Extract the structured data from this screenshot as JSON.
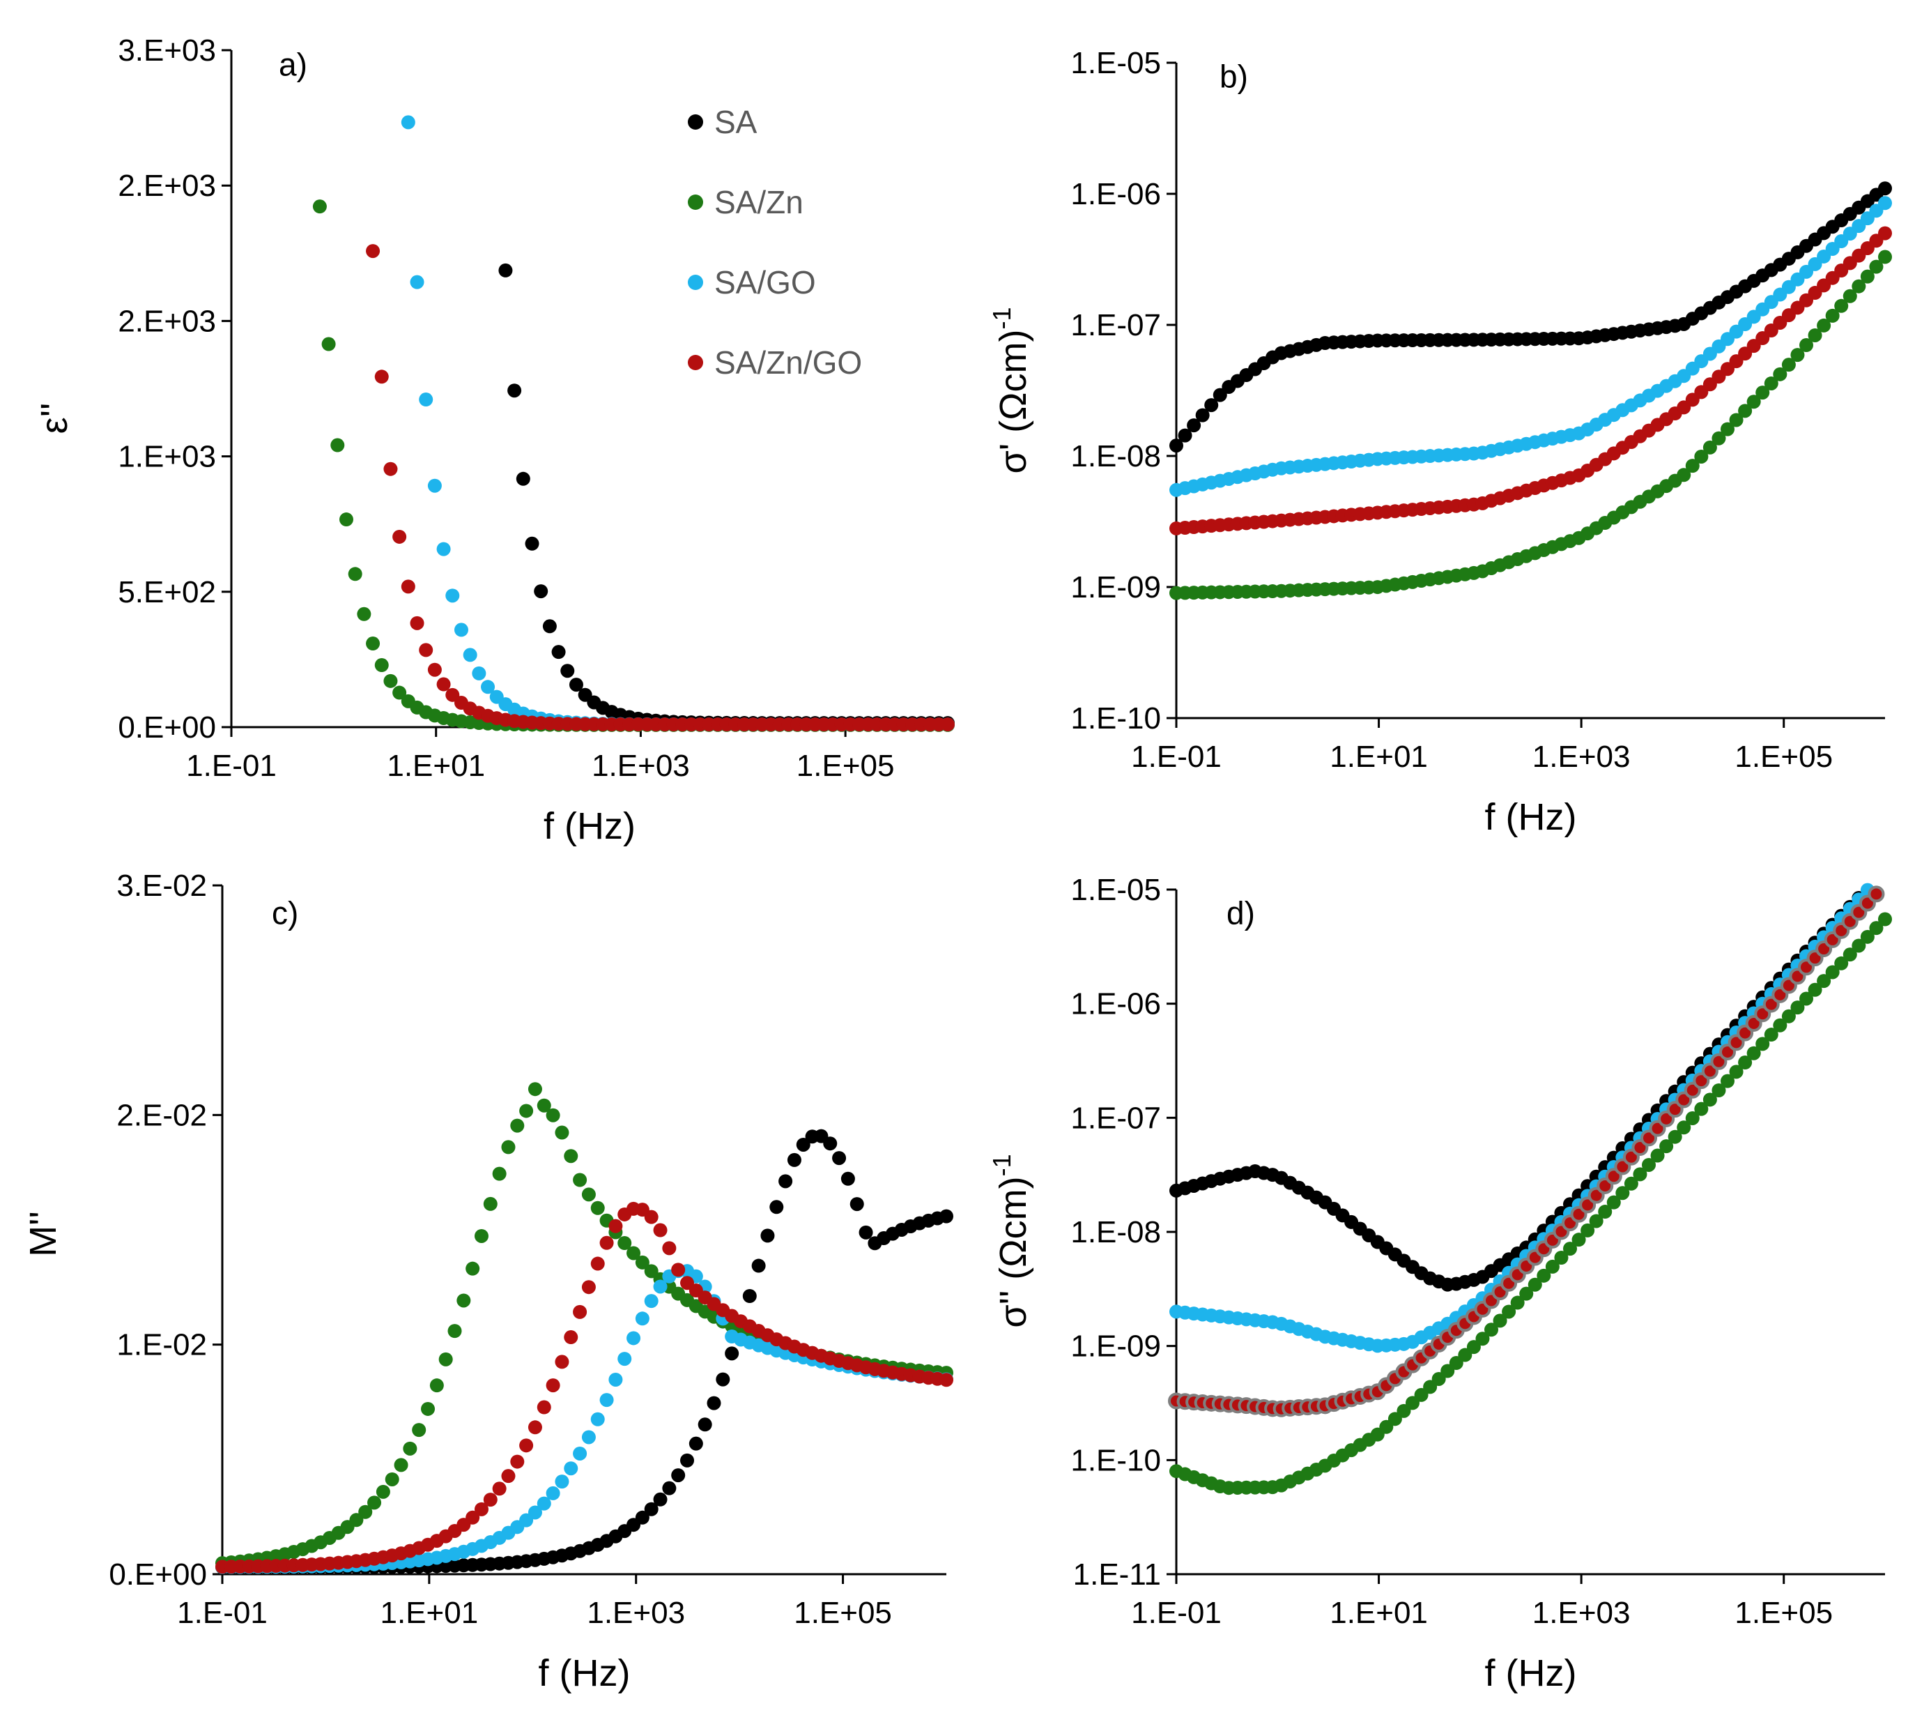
{
  "figure": {
    "background": "#ffffff"
  },
  "legend": {
    "entries": [
      {
        "name": "SA",
        "color": "#000000"
      },
      {
        "name": "SA/Zn",
        "color": "#1e7a14"
      },
      {
        "name": "SA/GO",
        "color": "#1eb4ec"
      },
      {
        "name": "SA/Zn/GO",
        "color": "#b40f0f"
      }
    ]
  },
  "chart_data": [
    {
      "panel": "a)",
      "type": "scatter",
      "xscale": "log",
      "yscale": "linear",
      "xlabel": "f (Hz)",
      "ylabel": "ε''",
      "xlim": [
        0.1,
        1000000
      ],
      "ylim": [
        0,
        2500
      ],
      "xticks": [
        {
          "value": 0.1,
          "label": "1.E-01"
        },
        {
          "value": 10,
          "label": "1.E+01"
        },
        {
          "value": 1000,
          "label": "1.E+03"
        },
        {
          "value": 100000,
          "label": "1.E+05"
        }
      ],
      "yticks": [
        {
          "value": 0,
          "label": "0.E+00"
        },
        {
          "value": 500,
          "label": "5.E+02"
        },
        {
          "value": 1000,
          "label": "1.E+03"
        },
        {
          "value": 1500,
          "label": "2.E+03"
        },
        {
          "value": 2000,
          "label": "2.E+03"
        },
        {
          "value": 2500,
          "label": "3.E+03"
        }
      ],
      "legend_position": "top-right",
      "series": [
        {
          "name": "SA",
          "color": "#000000",
          "model": "powerlaw",
          "params": {
            "A": 2200,
            "x0": 40,
            "n": 1.55,
            "floor": 15
          }
        },
        {
          "name": "SA/Zn",
          "color": "#1e7a14",
          "model": "powerlaw",
          "params": {
            "A": 2050,
            "x0": 0.7,
            "n": 1.55,
            "floor": 8
          }
        },
        {
          "name": "SA/GO",
          "color": "#1eb4ec",
          "model": "powerlaw",
          "params": {
            "A": 2470,
            "x0": 5,
            "n": 1.55,
            "floor": 10
          }
        },
        {
          "name": "SA/Zn/GO",
          "color": "#b40f0f",
          "model": "powerlaw",
          "params": {
            "A": 2340,
            "x0": 2,
            "n": 1.55,
            "floor": 10
          }
        }
      ]
    },
    {
      "panel": "b)",
      "type": "scatter",
      "xscale": "log",
      "yscale": "log",
      "xlabel": "f (Hz)",
      "ylabel": "σ' (Ωcm)",
      "ylabel_superscript": "-1",
      "xlim": [
        0.1,
        1000000
      ],
      "ylim": [
        1e-10,
        1e-05
      ],
      "xticks": [
        {
          "value": 0.1,
          "label": "1.E-01"
        },
        {
          "value": 10,
          "label": "1.E+01"
        },
        {
          "value": 1000,
          "label": "1.E+03"
        },
        {
          "value": 100000,
          "label": "1.E+05"
        }
      ],
      "yticks": [
        {
          "value": 1e-10,
          "label": "1.E-10"
        },
        {
          "value": 1e-09,
          "label": "1.E-09"
        },
        {
          "value": 1e-08,
          "label": "1.E-08"
        },
        {
          "value": 1e-07,
          "label": "1.E-07"
        },
        {
          "value": 1e-06,
          "label": "1.E-06"
        },
        {
          "value": 1e-05,
          "label": "1.E-05"
        }
      ],
      "series": [
        {
          "name": "SA",
          "color": "#000000",
          "model": "knots",
          "points": [
            [
              0.1,
              1.2e-08
            ],
            [
              0.3,
              3.2e-08
            ],
            [
              1,
              6e-08
            ],
            [
              3,
              7.3e-08
            ],
            [
              10,
              7.6e-08
            ],
            [
              100,
              7.7e-08
            ],
            [
              1000,
              7.9e-08
            ],
            [
              10000,
              1e-07
            ],
            [
              100000,
              3e-07
            ],
            [
              1000000,
              1.1e-06
            ]
          ]
        },
        {
          "name": "SA/Zn",
          "color": "#1e7a14",
          "model": "knots",
          "points": [
            [
              0.1,
              9e-10
            ],
            [
              1,
              9.3e-10
            ],
            [
              10,
              1e-09
            ],
            [
              100,
              1.3e-09
            ],
            [
              1000,
              2.4e-09
            ],
            [
              10000,
              7e-09
            ],
            [
              100000,
              4.5e-08
            ],
            [
              1000000,
              3.3e-07
            ]
          ]
        },
        {
          "name": "SA/GO",
          "color": "#1eb4ec",
          "model": "knots",
          "points": [
            [
              0.1,
              5.5e-09
            ],
            [
              1,
              8e-09
            ],
            [
              10,
              9.5e-09
            ],
            [
              100,
              1.05e-08
            ],
            [
              1000,
              1.5e-08
            ],
            [
              10000,
              4e-08
            ],
            [
              100000,
              1.8e-07
            ],
            [
              1000000,
              8.5e-07
            ]
          ]
        },
        {
          "name": "SA/Zn/GO",
          "color": "#b40f0f",
          "model": "knots",
          "points": [
            [
              0.1,
              2.8e-09
            ],
            [
              1,
              3.2e-09
            ],
            [
              10,
              3.7e-09
            ],
            [
              100,
              4.3e-09
            ],
            [
              1000,
              7.2e-09
            ],
            [
              10000,
              2.3e-08
            ],
            [
              100000,
              1.1e-07
            ],
            [
              1000000,
              5e-07
            ]
          ]
        }
      ]
    },
    {
      "panel": "c)",
      "type": "scatter",
      "xscale": "log",
      "yscale": "linear",
      "xlabel": "f (Hz)",
      "ylabel": "M''",
      "xlim": [
        0.1,
        1000000
      ],
      "ylim": [
        0,
        0.03
      ],
      "xticks": [
        {
          "value": 0.1,
          "label": "1.E-01"
        },
        {
          "value": 10,
          "label": "1.E+01"
        },
        {
          "value": 1000,
          "label": "1.E+03"
        },
        {
          "value": 100000,
          "label": "1.E+05"
        }
      ],
      "yticks": [
        {
          "value": 0,
          "label": "0.E+00"
        },
        {
          "value": 0.01,
          "label": "1.E-02"
        },
        {
          "value": 0.02,
          "label": "2.E-02"
        },
        {
          "value": 0.03,
          "label": "3.E-02"
        }
      ],
      "series": [
        {
          "name": "SA",
          "color": "#000000",
          "model": "peak",
          "params": {
            "peak": 0.0272,
            "fp": 50000,
            "tail": 0.0157
          }
        },
        {
          "name": "SA/Zn",
          "color": "#1e7a14",
          "model": "peak",
          "params": {
            "peak": 0.0292,
            "fp": 100,
            "tail": 0.0081
          }
        },
        {
          "name": "SA/GO",
          "color": "#1eb4ec",
          "model": "peak",
          "params": {
            "peak": 0.0187,
            "fp": 2500,
            "tail": 0.0077
          }
        },
        {
          "name": "SA/Zn/GO",
          "color": "#b40f0f",
          "model": "peak",
          "params": {
            "peak": 0.0226,
            "fp": 900,
            "tail": 0.0076
          }
        }
      ]
    },
    {
      "panel": "d)",
      "type": "scatter",
      "xscale": "log",
      "yscale": "log",
      "xlabel": "f (Hz)",
      "ylabel": "σ'' (Ωcm)",
      "ylabel_superscript": "-1",
      "xlim": [
        0.1,
        1000000
      ],
      "ylim": [
        1e-11,
        1e-05
      ],
      "xticks": [
        {
          "value": 0.1,
          "label": "1.E-01"
        },
        {
          "value": 10,
          "label": "1.E+01"
        },
        {
          "value": 1000,
          "label": "1.E+03"
        },
        {
          "value": 100000,
          "label": "1.E+05"
        }
      ],
      "yticks": [
        {
          "value": 1e-11,
          "label": "1.E-11"
        },
        {
          "value": 1e-10,
          "label": "1.E-10"
        },
        {
          "value": 1e-09,
          "label": "1.E-09"
        },
        {
          "value": 1e-08,
          "label": "1.E-08"
        },
        {
          "value": 1e-07,
          "label": "1.E-07"
        },
        {
          "value": 1e-06,
          "label": "1.E-06"
        },
        {
          "value": 1e-05,
          "label": "1.E-05"
        }
      ],
      "series": [
        {
          "name": "SA",
          "color": "#000000",
          "model": "knots",
          "points": [
            [
              0.1,
              2.3e-08
            ],
            [
              0.3,
              3e-08
            ],
            [
              0.6,
              3.4e-08
            ],
            [
              1,
              3.1e-08
            ],
            [
              3,
              1.8e-08
            ],
            [
              10,
              8e-09
            ],
            [
              30,
              4e-09
            ],
            [
              50,
              3.4e-09
            ],
            [
              100,
              3.9e-09
            ],
            [
              300,
              7.5e-09
            ],
            [
              1000,
              2.2e-08
            ],
            [
              10000,
              2e-07
            ],
            [
              100000,
              1.8e-06
            ],
            [
              1000000,
              1.45e-05
            ]
          ]
        },
        {
          "name": "SA/Zn",
          "color": "#1e7a14",
          "model": "knots",
          "points": [
            [
              0.1,
              8e-11
            ],
            [
              0.3,
              5.7e-11
            ],
            [
              1,
              5.8e-11
            ],
            [
              3,
              9e-11
            ],
            [
              10,
              1.7e-10
            ],
            [
              100,
              1.1e-09
            ],
            [
              1000,
              9e-09
            ],
            [
              10000,
              8e-08
            ],
            [
              100000,
              7e-07
            ],
            [
              1000000,
              5.5e-06
            ]
          ]
        },
        {
          "name": "SA/GO",
          "color": "#1eb4ec",
          "model": "knots",
          "points": [
            [
              0.1,
              2e-09
            ],
            [
              1,
              1.6e-09
            ],
            [
              3,
              1.2e-09
            ],
            [
              10,
              1e-09
            ],
            [
              20,
              1.05e-09
            ],
            [
              50,
              1.6e-09
            ],
            [
              100,
              2.5e-09
            ],
            [
              1000,
              1.8e-08
            ],
            [
              10000,
              1.7e-07
            ],
            [
              100000,
              1.6e-06
            ],
            [
              1000000,
              1.45e-05
            ]
          ]
        },
        {
          "name": "SA/Zn/GO",
          "color": "#b40f0f",
          "stroke": "#7f7f7f",
          "model": "knots",
          "points": [
            [
              0.1,
              3.3e-10
            ],
            [
              0.5,
              3e-10
            ],
            [
              1,
              2.8e-10
            ],
            [
              3,
              3e-10
            ],
            [
              10,
              4e-10
            ],
            [
              100,
              2e-09
            ],
            [
              1000,
              1.5e-08
            ],
            [
              10000,
              1.4e-07
            ],
            [
              100000,
              1.3e-06
            ],
            [
              1000000,
              1.1e-05
            ]
          ]
        }
      ]
    }
  ]
}
